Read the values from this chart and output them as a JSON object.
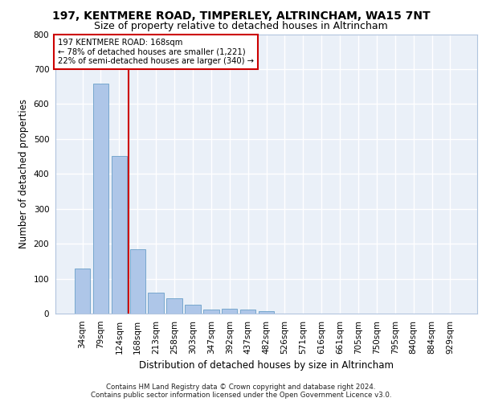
{
  "title1": "197, KENTMERE ROAD, TIMPERLEY, ALTRINCHAM, WA15 7NT",
  "title2": "Size of property relative to detached houses in Altrincham",
  "xlabel": "Distribution of detached houses by size in Altrincham",
  "ylabel": "Number of detached properties",
  "categories": [
    "34sqm",
    "79sqm",
    "124sqm",
    "168sqm",
    "213sqm",
    "258sqm",
    "303sqm",
    "347sqm",
    "392sqm",
    "437sqm",
    "482sqm",
    "526sqm",
    "571sqm",
    "616sqm",
    "661sqm",
    "705sqm",
    "750sqm",
    "795sqm",
    "840sqm",
    "884sqm",
    "929sqm"
  ],
  "values": [
    128,
    658,
    451,
    184,
    60,
    43,
    25,
    12,
    13,
    11,
    8,
    0,
    0,
    0,
    0,
    0,
    0,
    0,
    0,
    0,
    0
  ],
  "bar_color": "#aec6e8",
  "bar_edgecolor": "#6a9fc8",
  "vline_color": "#cc0000",
  "box_edgecolor": "#cc0000",
  "annotation_line1": "197 KENTMERE ROAD: 168sqm",
  "annotation_line2": "← 78% of detached houses are smaller (1,221)",
  "annotation_line3": "22% of semi-detached houses are larger (340) →",
  "ylim": [
    0,
    800
  ],
  "yticks": [
    0,
    100,
    200,
    300,
    400,
    500,
    600,
    700,
    800
  ],
  "bg_color": "#eaf0f8",
  "grid_color": "#ffffff",
  "footer": "Contains HM Land Registry data © Crown copyright and database right 2024.\nContains public sector information licensed under the Open Government Licence v3.0."
}
